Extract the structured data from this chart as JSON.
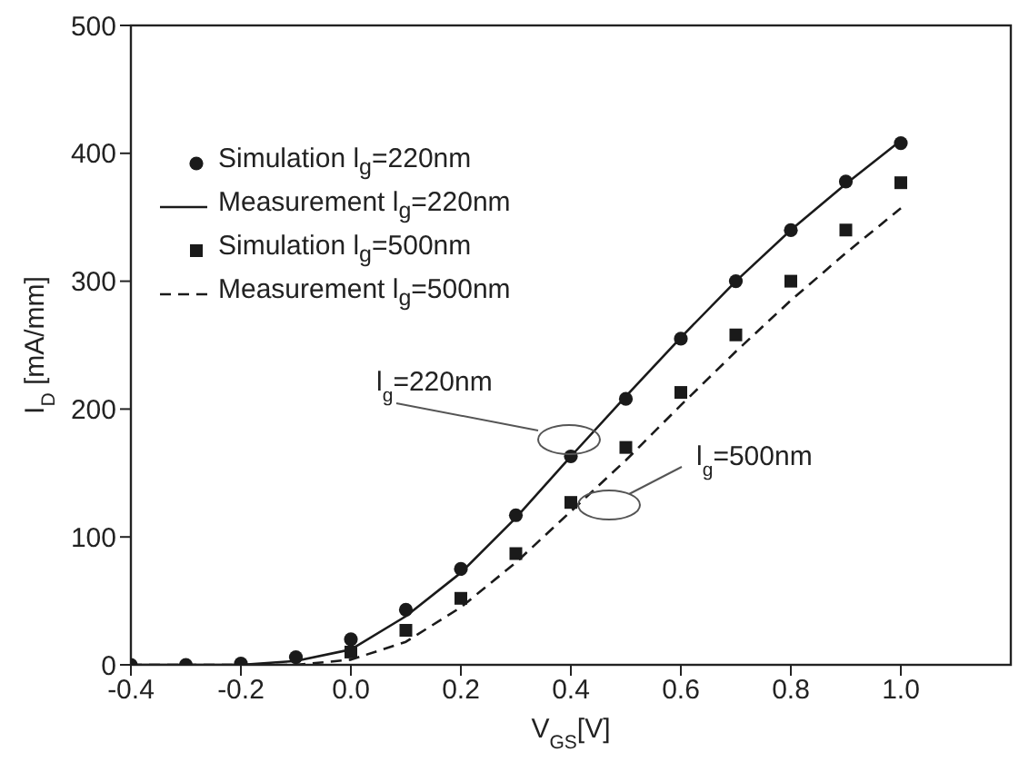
{
  "chart_data": {
    "type": "line",
    "xlabel": "V$_{GS}$[V]",
    "ylabel": "I$_{D}$ [mA/mm]",
    "x": [
      -0.4,
      -0.3,
      -0.2,
      -0.1,
      0.0,
      0.1,
      0.2,
      0.3,
      0.4,
      0.5,
      0.6,
      0.7,
      0.8,
      0.9,
      1.0
    ],
    "series": [
      {
        "name": "Simulation l$_{g}$=220nm",
        "type": "scatter",
        "marker": "circle",
        "color": "#1a1a1a",
        "values": [
          0,
          0,
          1,
          6,
          20,
          43,
          75,
          117,
          163,
          208,
          255,
          300,
          340,
          378,
          408
        ]
      },
      {
        "name": "Measurement l$_{g}$=220nm",
        "marker": "none",
        "line_style": "solid",
        "color": "#1a1a1a",
        "values": [
          0,
          0,
          0,
          3,
          12,
          38,
          72,
          115,
          163,
          210,
          256,
          300,
          340,
          376,
          410
        ]
      },
      {
        "name": "Simulation l$_{g}$=500nm",
        "type": "scatter",
        "marker": "square",
        "color": "#1a1a1a",
        "values": [
          null,
          null,
          null,
          null,
          10,
          27,
          52,
          87,
          127,
          170,
          213,
          258,
          300,
          340,
          377
        ]
      },
      {
        "name": "Measurement l$_{g}$=500nm",
        "marker": "none",
        "line_style": "dashed",
        "color": "#1a1a1a",
        "values": [
          0,
          0,
          0,
          0,
          4,
          18,
          45,
          80,
          120,
          160,
          203,
          245,
          285,
          322,
          357
        ]
      }
    ],
    "annotations": [
      "l$_{g}$=220nm",
      "l$_{g}$=500nm"
    ],
    "xlim": [
      -0.4,
      1.2
    ],
    "xticks": [
      {
        "value": -0.4,
        "label": "-0.4"
      },
      {
        "value": -0.2,
        "label": "-0.2"
      },
      {
        "value": 0,
        "label": "0.0"
      },
      {
        "value": 0.2,
        "label": "0.2"
      },
      {
        "value": 0.4,
        "label": "0.4"
      },
      {
        "value": 0.6,
        "label": "0.6"
      },
      {
        "value": 0.8,
        "label": "0.8"
      },
      {
        "value": 1.0,
        "label": "1.0"
      }
    ],
    "ylim": [
      0,
      500
    ],
    "yticks": [
      0,
      100,
      200,
      300,
      400,
      500
    ],
    "grid": false,
    "legend": "top left"
  }
}
